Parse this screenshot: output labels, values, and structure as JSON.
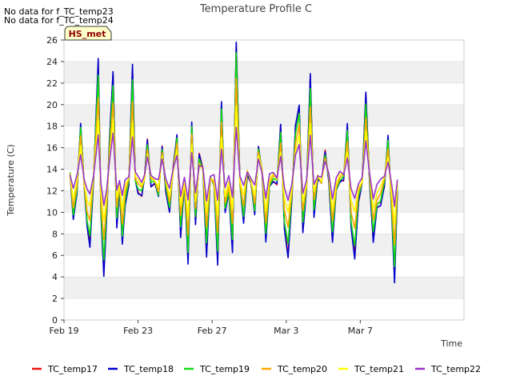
{
  "notes": [
    "No data for f_TC_temp23",
    "No data for f_TC_temp24"
  ],
  "site_badge": "HS_met",
  "chart_data": {
    "type": "line",
    "title": "Temperature Profile C",
    "xlabel": "Time",
    "ylabel": "Temperature (C)",
    "ylim": [
      0,
      26
    ],
    "yticks": [
      0,
      2,
      4,
      6,
      8,
      10,
      12,
      14,
      16,
      18,
      20,
      22,
      24,
      26
    ],
    "xlim": [
      0,
      21.6
    ],
    "xticks": [
      {
        "x": 0,
        "label": "Feb 19"
      },
      {
        "x": 4,
        "label": "Feb 23"
      },
      {
        "x": 8,
        "label": "Feb 27"
      },
      {
        "x": 12,
        "label": "Mar 3"
      },
      {
        "x": 16,
        "label": "Mar 7"
      }
    ],
    "grid": "horizontal bands",
    "legend_position": "bottom",
    "x_unit": "days since Feb 19",
    "base_profile": {
      "x": [
        0.33,
        0.5,
        0.7,
        0.9,
        1.1,
        1.25,
        1.4,
        1.6,
        1.85,
        2.0,
        2.15,
        2.3,
        2.45,
        2.65,
        2.85,
        3.0,
        3.15,
        3.3,
        3.5,
        3.7,
        3.85,
        4.0,
        4.2,
        4.35,
        4.5,
        4.7,
        4.9,
        5.1,
        5.3,
        5.5,
        5.7,
        5.9,
        6.1,
        6.3,
        6.5,
        6.7,
        6.9,
        7.1,
        7.3,
        7.5,
        7.7,
        7.9,
        8.1,
        8.3,
        8.5,
        8.7,
        8.9,
        9.1,
        9.3,
        9.5,
        9.7,
        9.9,
        10.1,
        10.3,
        10.5,
        10.7,
        10.9,
        11.1,
        11.3,
        11.5,
        11.7,
        11.9,
        12.1,
        12.3,
        12.5,
        12.7,
        12.9,
        13.1,
        13.3,
        13.5,
        13.7,
        13.9,
        14.1,
        14.3,
        14.5,
        14.7,
        14.9,
        15.1,
        15.3,
        15.5,
        15.7,
        15.9,
        16.1,
        16.3,
        16.5,
        16.7,
        16.9,
        17.1,
        17.3,
        17.5,
        17.7,
        17.85,
        18.0
      ],
      "y": [
        13.3,
        9.5,
        12.0,
        17.8,
        12.0,
        9.0,
        7.5,
        13.0,
        23.0,
        10.0,
        5.0,
        9.5,
        16.0,
        22.3,
        9.0,
        12.0,
        7.5,
        11.0,
        12.5,
        22.5,
        13.0,
        12.0,
        11.5,
        13.0,
        16.5,
        12.5,
        12.5,
        11.5,
        16.0,
        12.0,
        10.0,
        14.0,
        17.0,
        8.0,
        12.5,
        6.0,
        18.0,
        9.0,
        15.0,
        14.0,
        6.5,
        13.0,
        12.5,
        6.0,
        19.5,
        10.0,
        12.0,
        7.0,
        25.0,
        12.5,
        9.5,
        13.5,
        12.5,
        10.0,
        16.0,
        13.5,
        7.5,
        12.5,
        13.0,
        12.5,
        17.5,
        9.0,
        6.5,
        11.0,
        17.5,
        19.5,
        8.5,
        12.0,
        22.0,
        10.0,
        13.0,
        12.5,
        15.5,
        13.0,
        7.5,
        12.0,
        13.0,
        13.0,
        17.5,
        9.0,
        6.5,
        11.0,
        12.5,
        20.5,
        13.0,
        7.5,
        10.5,
        11.0,
        12.5,
        16.5,
        10.0,
        4.5,
        12.0
      ]
    },
    "series": [
      {
        "name": "TC_temp17",
        "color": "#ee1111",
        "amp": 1.05,
        "offset": 0.1
      },
      {
        "name": "TC_temp18",
        "color": "#0000cc",
        "amp": 1.1,
        "offset": 0.0
      },
      {
        "name": "TC_temp19",
        "color": "#11dd11",
        "amp": 0.95,
        "offset": 0.2
      },
      {
        "name": "TC_temp20",
        "color": "#ffa500",
        "amp": 0.75,
        "offset": 0.4
      },
      {
        "name": "TC_temp21",
        "color": "#ffff00",
        "amp": 0.55,
        "offset": 0.6
      },
      {
        "name": "TC_temp22",
        "color": "#9932cc",
        "amp": 0.38,
        "offset": 0.9
      }
    ]
  }
}
